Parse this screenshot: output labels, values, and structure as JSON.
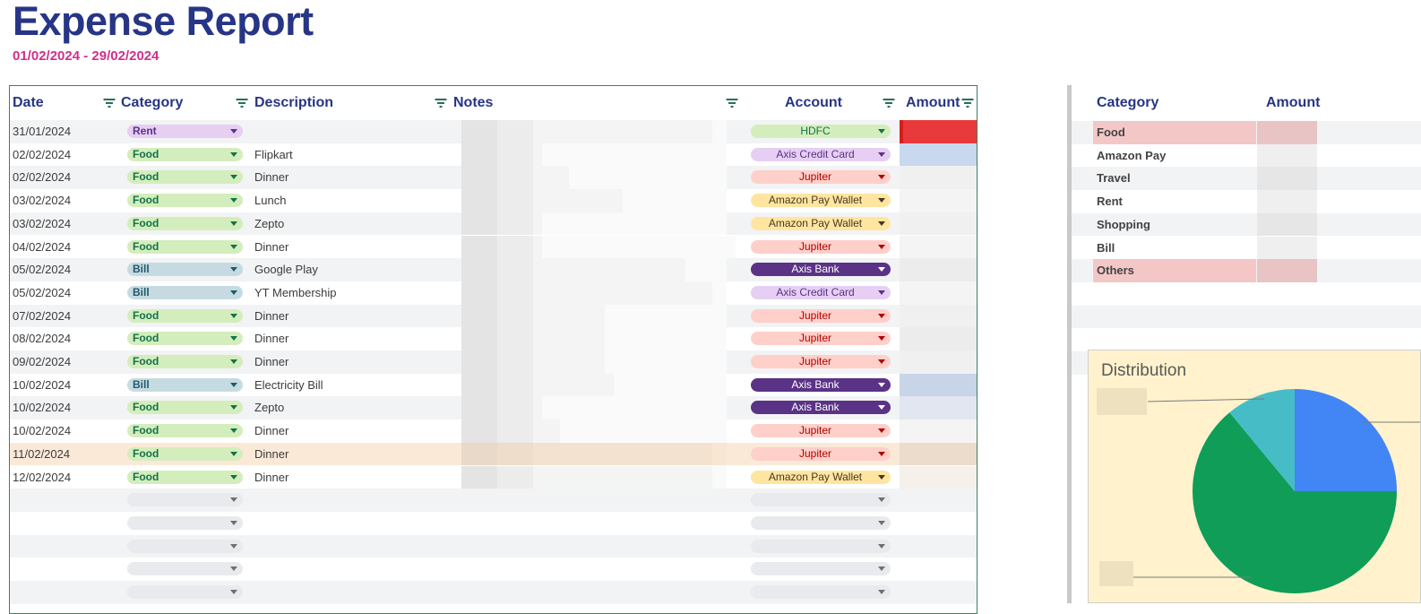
{
  "report": {
    "title": "Expense Report",
    "date_range": "01/02/2024 - 29/02/2024"
  },
  "table": {
    "headers": [
      "Date",
      "Category",
      "Description",
      "Notes",
      "Account",
      "Amount"
    ],
    "rows": [
      {
        "date": "31/01/2024",
        "category": "Rent",
        "description": "",
        "account": "HDFC"
      },
      {
        "date": "02/02/2024",
        "category": "Food",
        "description": "Flipkart",
        "account": "Axis Credit Card"
      },
      {
        "date": "02/02/2024",
        "category": "Food",
        "description": "Dinner",
        "account": "Jupiter"
      },
      {
        "date": "03/02/2024",
        "category": "Food",
        "description": "Lunch",
        "account": "Amazon Pay Wallet"
      },
      {
        "date": "03/02/2024",
        "category": "Food",
        "description": "Zepto",
        "account": "Amazon Pay Wallet"
      },
      {
        "date": "04/02/2024",
        "category": "Food",
        "description": "Dinner",
        "account": "Jupiter"
      },
      {
        "date": "05/02/2024",
        "category": "Bill",
        "description": "Google Play",
        "account": "Axis Bank"
      },
      {
        "date": "05/02/2024",
        "category": "Bill",
        "description": "YT Membership",
        "account": "Axis Credit Card"
      },
      {
        "date": "07/02/2024",
        "category": "Food",
        "description": "Dinner",
        "account": "Jupiter"
      },
      {
        "date": "08/02/2024",
        "category": "Food",
        "description": "Dinner",
        "account": "Jupiter"
      },
      {
        "date": "09/02/2024",
        "category": "Food",
        "description": "Dinner",
        "account": "Jupiter"
      },
      {
        "date": "10/02/2024",
        "category": "Bill",
        "description": "Electricity Bill",
        "account": "Axis Bank"
      },
      {
        "date": "10/02/2024",
        "category": "Food",
        "description": "Zepto",
        "account": "Axis Bank"
      },
      {
        "date": "10/02/2024",
        "category": "Food",
        "description": "Dinner",
        "account": "Jupiter"
      },
      {
        "date": "11/02/2024",
        "category": "Food",
        "description": "Dinner",
        "account": "Jupiter"
      },
      {
        "date": "12/02/2024",
        "category": "Food",
        "description": "Dinner",
        "account": "Amazon Pay Wallet"
      }
    ],
    "empty_rows": 5
  },
  "colors": {
    "title": "#273586",
    "date_range": "#d12f8e",
    "category": {
      "Rent": {
        "bg": "#e6cff2",
        "fg": "#5a3286"
      },
      "Food": {
        "bg": "#d4edbc",
        "fg": "#11734b"
      },
      "Bill": {
        "bg": "#c6dbe1",
        "fg": "#215a6c"
      }
    },
    "account": {
      "HDFC": {
        "bg": "#d4edbc",
        "fg": "#11734b"
      },
      "Axis Credit Card": {
        "bg": "#e6cff2",
        "fg": "#5a3286"
      },
      "Jupiter": {
        "bg": "#ffcfc9",
        "fg": "#b10202"
      },
      "Amazon Pay Wallet": {
        "bg": "#ffe5a0",
        "fg": "#473821"
      },
      "Axis Bank": {
        "bg": "#5a3286",
        "fg": "#ffffff"
      }
    },
    "empty_chip": "#e8eaed"
  },
  "summary": {
    "headers": [
      "Category",
      "Amount"
    ],
    "rows": [
      {
        "category": "Food",
        "highlight": true
      },
      {
        "category": "Amazon Pay",
        "highlight": false
      },
      {
        "category": "Travel",
        "highlight": false
      },
      {
        "category": "Rent",
        "highlight": false
      },
      {
        "category": "Shopping",
        "highlight": false
      },
      {
        "category": "Bill",
        "highlight": false
      },
      {
        "category": "Others",
        "highlight": true
      }
    ]
  },
  "chart_data": {
    "type": "pie",
    "title": "Distribution",
    "values": [
      25,
      64,
      11
    ],
    "colors": [
      "#4285f4",
      "#0f9d58",
      "#46bdc6"
    ]
  }
}
